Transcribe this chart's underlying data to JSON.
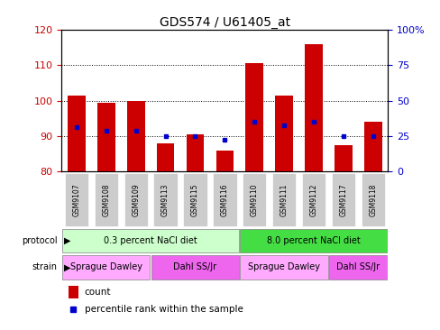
{
  "title": "GDS574 / U61405_at",
  "samples": [
    "GSM9107",
    "GSM9108",
    "GSM9109",
    "GSM9113",
    "GSM9115",
    "GSM9116",
    "GSM9110",
    "GSM9111",
    "GSM9112",
    "GSM9117",
    "GSM9118"
  ],
  "counts": [
    101.5,
    99.5,
    100.0,
    88.0,
    90.5,
    86.0,
    110.5,
    101.5,
    116.0,
    87.5,
    94.0
  ],
  "percentiles_left_axis": [
    92.5,
    91.5,
    91.5,
    90.0,
    90.0,
    89.0,
    94.0,
    93.0,
    94.0,
    90.0,
    90.0
  ],
  "ylim_left": [
    80,
    120
  ],
  "ylim_right": [
    0,
    100
  ],
  "yticks_left": [
    80,
    90,
    100,
    110,
    120
  ],
  "yticks_right": [
    0,
    25,
    50,
    75,
    100
  ],
  "ytick_labels_right": [
    "0",
    "25",
    "50",
    "75",
    "100%"
  ],
  "bar_color": "#cc0000",
  "dot_color": "#0000cc",
  "bar_bottom": 80,
  "grid_values": [
    90,
    100,
    110
  ],
  "protocol_groups": [
    {
      "label": "0.3 percent NaCl diet",
      "color": "#ccffcc",
      "start": 0,
      "end": 6
    },
    {
      "label": "8.0 percent NaCl diet",
      "color": "#44dd44",
      "start": 6,
      "end": 11
    }
  ],
  "strain_groups": [
    {
      "label": "Sprague Dawley",
      "color": "#ffaaff",
      "start": 0,
      "end": 3
    },
    {
      "label": "Dahl SS/Jr",
      "color": "#ee66ee",
      "start": 3,
      "end": 6
    },
    {
      "label": "Sprague Dawley",
      "color": "#ffaaff",
      "start": 6,
      "end": 9
    },
    {
      "label": "Dahl SS/Jr",
      "color": "#ee66ee",
      "start": 9,
      "end": 11
    }
  ],
  "protocol_label": "protocol",
  "strain_label": "strain",
  "legend_count_label": "count",
  "legend_percentile_label": "percentile rank within the sample",
  "sample_box_color": "#cccccc",
  "n_samples": 11
}
